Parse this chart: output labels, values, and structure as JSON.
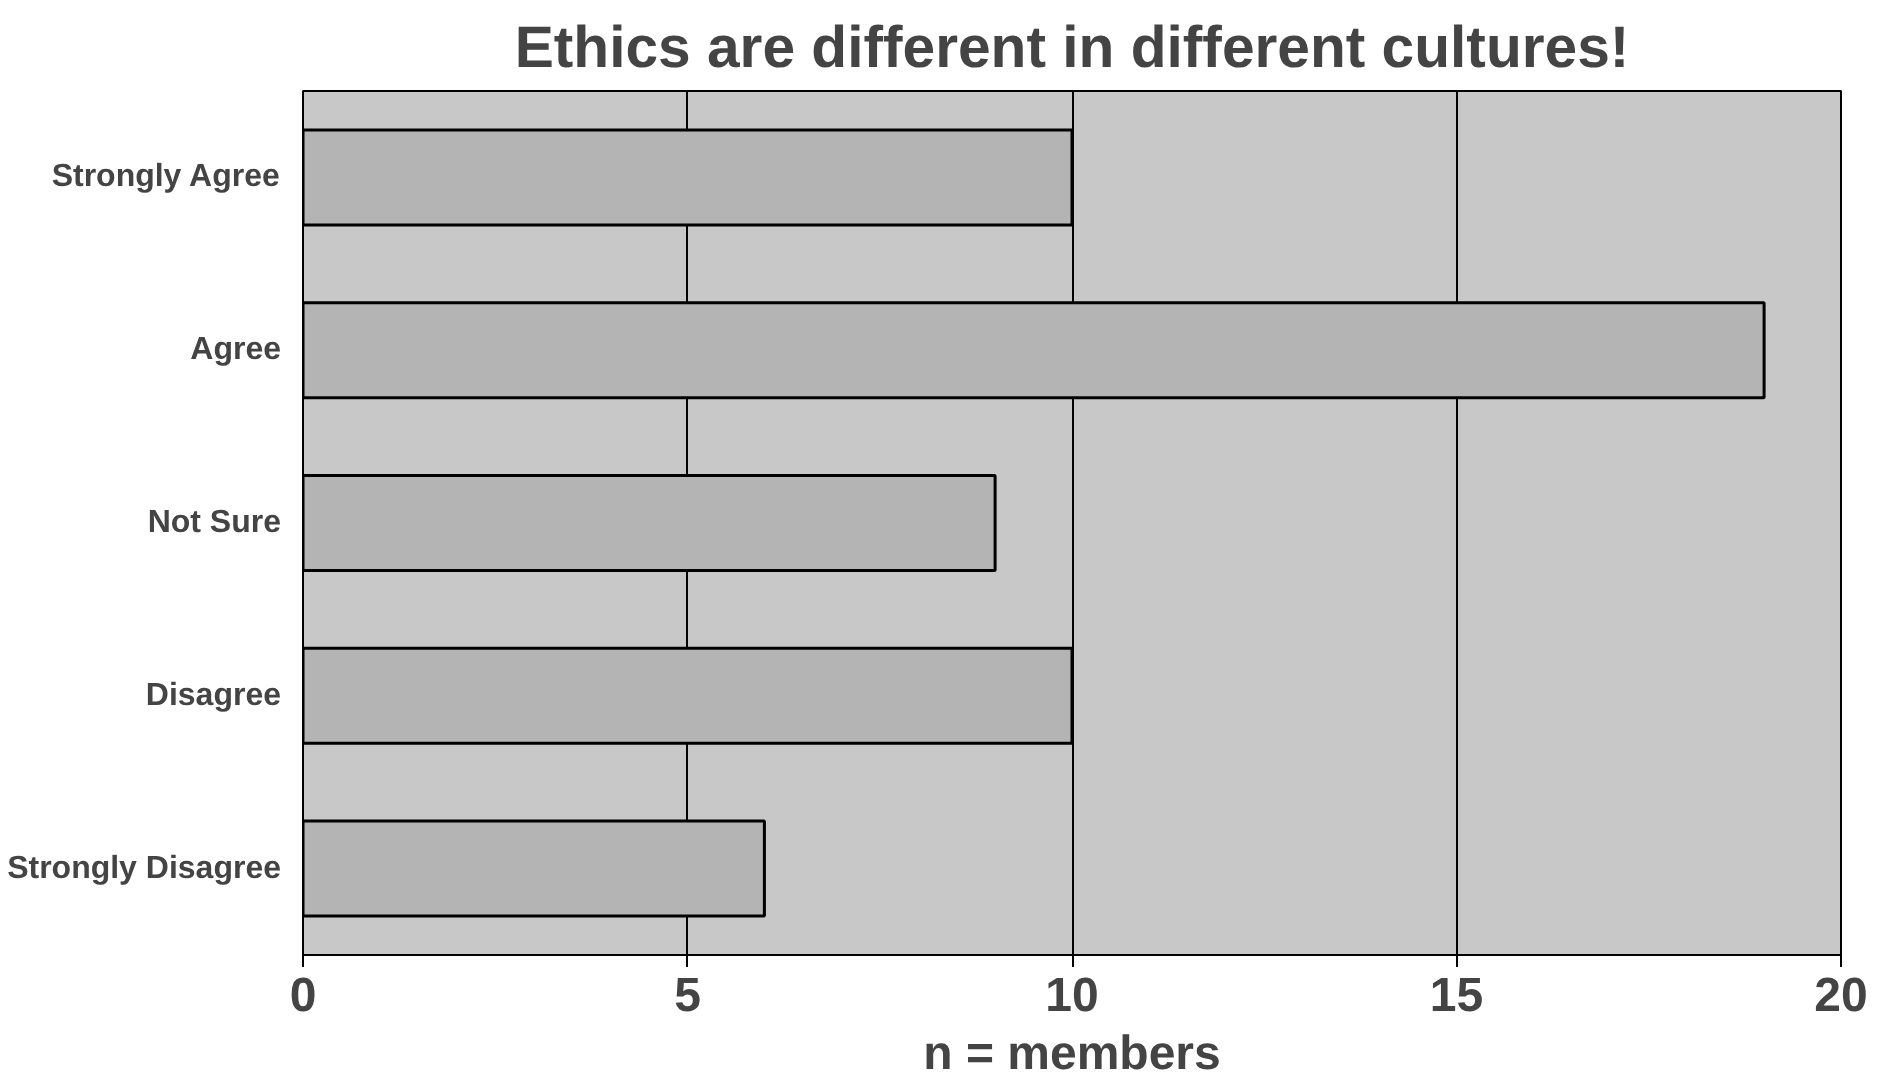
{
  "chart_data": {
    "type": "bar",
    "orientation": "horizontal",
    "title": "Ethics are different in different cultures!",
    "xlabel": "n = members",
    "categories": [
      "Strongly Agree",
      "Agree",
      "Not Sure",
      "Disagree",
      "Strongly Disagree"
    ],
    "values": [
      10,
      19,
      9,
      10,
      6
    ],
    "color": "#b4b4b4",
    "xlim": [
      0,
      20
    ],
    "xticks": [
      0,
      5,
      10,
      15,
      20
    ],
    "grid": "x"
  }
}
